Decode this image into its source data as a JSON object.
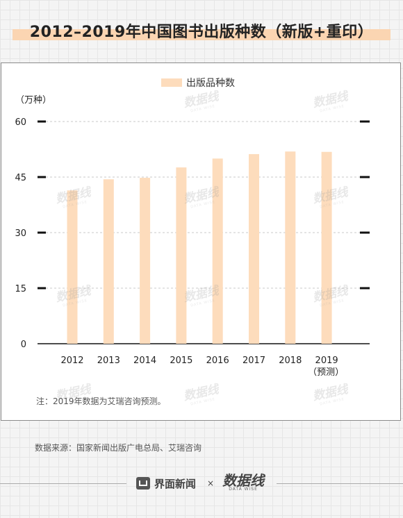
{
  "title": "2012–2019年中国图书出版种数（新版+重印）",
  "chart_data": {
    "type": "bar",
    "categories": [
      "2012",
      "2013",
      "2014",
      "2015",
      "2016",
      "2017",
      "2018",
      "2019"
    ],
    "category_sublabels": [
      "",
      "",
      "",
      "",
      "",
      "",
      "",
      "（预测）"
    ],
    "series": [
      {
        "name": "出版品种数",
        "values": [
          41.4,
          44.4,
          44.8,
          47.6,
          50.0,
          51.2,
          51.9,
          51.8
        ]
      }
    ],
    "unit_label": "（万种）",
    "ylim": [
      0,
      60
    ],
    "yticks": [
      0,
      15,
      30,
      45,
      60
    ],
    "grid": true,
    "legend_position": "top-center",
    "bar_color": "#fddcbc"
  },
  "note": "注：2019年数据为艾瑞咨询预测。",
  "source": "数据来源：国家新闻出版广电总局、艾瑞咨询",
  "footer": {
    "brand_name": "界面新闻",
    "times_sign": "×",
    "partner_name": "数据线",
    "partner_sub": "DATA WISE"
  },
  "watermark": {
    "text": "数据线",
    "sub": "DATA WISE"
  }
}
